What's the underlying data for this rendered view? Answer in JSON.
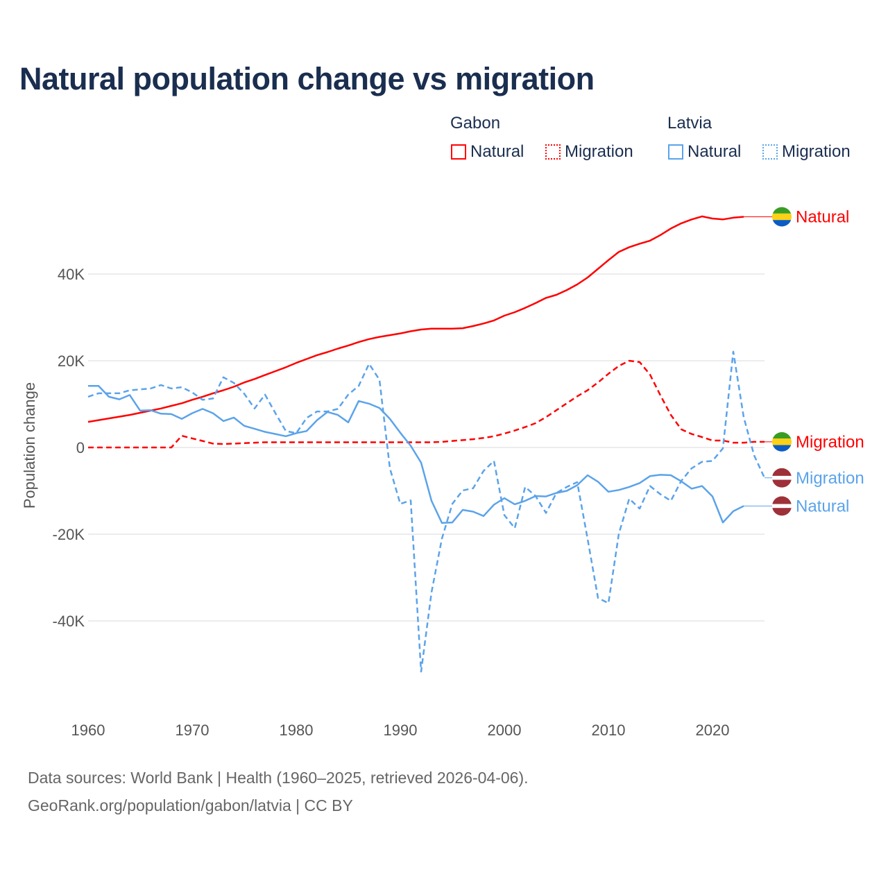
{
  "title": "Natural population change vs migration",
  "legend": {
    "groups": [
      {
        "name": "Gabon",
        "items": [
          "Natural",
          "Migration"
        ]
      },
      {
        "name": "Latvia",
        "items": [
          "Natural",
          "Migration"
        ]
      }
    ]
  },
  "colors": {
    "gabon": "#ff0000",
    "latvia": "#5ba3ea",
    "text": "#1a2e4f"
  },
  "footer": {
    "line1": "Data sources: World Bank | Health (1960–2025, retrieved 2026-04-06).",
    "line2": "GeoRank.org/population/gabon/latvia | CC BY"
  },
  "chart_data": {
    "type": "line",
    "title": "Natural population change vs migration",
    "xlabel": "",
    "ylabel": "Population change",
    "xlim": [
      1960,
      2025
    ],
    "ylim": [
      -60000,
      55000
    ],
    "x_ticks": [
      1960,
      1970,
      1980,
      1990,
      2000,
      2010,
      2020
    ],
    "x_tick_labels": [
      "1960",
      "1970",
      "1980",
      "1990",
      "2000",
      "2010",
      "2020"
    ],
    "y_ticks": [
      40000,
      20000,
      0,
      -20000,
      -40000
    ],
    "y_tick_labels": [
      "40K",
      "20K",
      "0",
      "-20K",
      "-40K"
    ],
    "grid": true,
    "legend_position": "top-right",
    "x_start": 1960,
    "series": [
      {
        "name": "Gabon Natural",
        "country": "Gabon",
        "kind": "Natural",
        "label": "Natural",
        "color": "#ff0000",
        "dash": false,
        "values": [
          5900,
          6300,
          6700,
          7100,
          7500,
          8000,
          8500,
          9000,
          9600,
          10200,
          11000,
          11700,
          12500,
          13200,
          14000,
          15000,
          15800,
          16700,
          17600,
          18500,
          19500,
          20400,
          21300,
          22000,
          22800,
          23500,
          24300,
          25000,
          25500,
          25900,
          26300,
          26800,
          27200,
          27400,
          27400,
          27400,
          27500,
          28000,
          28600,
          29300,
          30400,
          31200,
          32200,
          33300,
          34500,
          35200,
          36300,
          37600,
          39200,
          41200,
          43200,
          45100,
          46200,
          47000,
          47700,
          49000,
          50500,
          51700,
          52600,
          53300,
          52800,
          52600,
          53000,
          53200
        ]
      },
      {
        "name": "Gabon Migration",
        "country": "Gabon",
        "kind": "Migration",
        "label": "Migration",
        "color": "#ff0000",
        "dash": true,
        "values": [
          0,
          0,
          0,
          0,
          0,
          0,
          0,
          0,
          0,
          2700,
          2100,
          1500,
          900,
          800,
          900,
          1000,
          1100,
          1200,
          1200,
          1200,
          1200,
          1200,
          1200,
          1200,
          1200,
          1200,
          1200,
          1200,
          1200,
          1200,
          1200,
          1200,
          1200,
          1200,
          1300,
          1500,
          1700,
          1900,
          2200,
          2600,
          3200,
          3900,
          4700,
          5600,
          7000,
          8600,
          10200,
          11800,
          13200,
          15000,
          17000,
          18800,
          20000,
          19700,
          16800,
          12000,
          7500,
          4200,
          3100,
          2400,
          1600,
          1600,
          1100,
          1100,
          1300,
          1300
        ]
      },
      {
        "name": "Latvia Migration",
        "country": "Latvia",
        "kind": "Migration",
        "label": "Migration",
        "color": "#5ba3ea",
        "dash": true,
        "values": [
          11700,
          12500,
          12500,
          12500,
          13200,
          13400,
          13600,
          14400,
          13600,
          13900,
          12700,
          11000,
          11300,
          16200,
          14900,
          12400,
          9000,
          12200,
          7900,
          3800,
          3300,
          6800,
          8300,
          8300,
          8900,
          12200,
          14200,
          19300,
          15600,
          -4800,
          -13000,
          -12200,
          -51700,
          -33400,
          -21000,
          -13000,
          -9900,
          -9400,
          -5400,
          -3100,
          -15600,
          -18600,
          -9100,
          -11200,
          -15100,
          -10500,
          -9100,
          -8000,
          -21100,
          -34700,
          -35900,
          -19900,
          -11800,
          -14100,
          -8900,
          -10800,
          -12300,
          -7700,
          -4800,
          -3300,
          -3100,
          -200,
          22100,
          7000,
          -1800,
          -7000
        ]
      },
      {
        "name": "Latvia Natural",
        "country": "Latvia",
        "kind": "Natural",
        "label": "Natural",
        "color": "#5ba3ea",
        "dash": false,
        "values": [
          14200,
          14200,
          11700,
          11100,
          12100,
          8500,
          8600,
          7800,
          7700,
          6600,
          7900,
          8900,
          7900,
          6100,
          6900,
          5000,
          4300,
          3600,
          3100,
          2600,
          3300,
          3800,
          6300,
          8200,
          7500,
          5800,
          10700,
          10100,
          9100,
          6600,
          3400,
          400,
          -3500,
          -12300,
          -17400,
          -17300,
          -14400,
          -14800,
          -15800,
          -13200,
          -11700,
          -13100,
          -12300,
          -11200,
          -11300,
          -10500,
          -10000,
          -8700,
          -6400,
          -7900,
          -10200,
          -9800,
          -9100,
          -8200,
          -6600,
          -6300,
          -6400,
          -7800,
          -9500,
          -8900,
          -11300,
          -17300,
          -14700,
          -13500
        ]
      }
    ]
  }
}
